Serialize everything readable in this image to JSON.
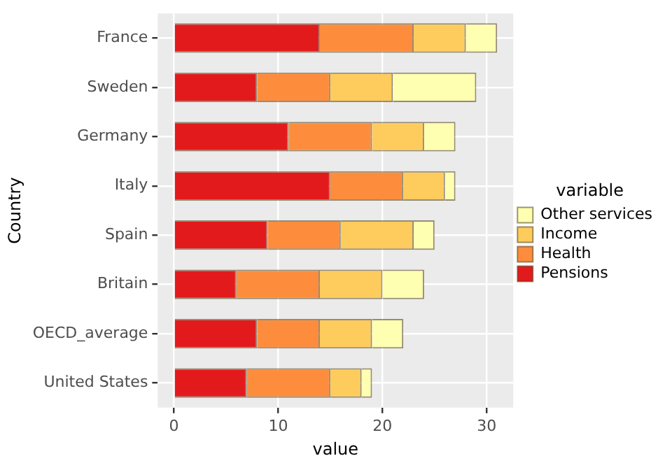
{
  "chart_data": {
    "type": "bar",
    "orientation": "horizontal",
    "stacked": true,
    "xlabel": "value",
    "ylabel": "Country",
    "legend_title": "variable",
    "legend": "right",
    "grid": true,
    "categories": [
      "France",
      "Sweden",
      "Germany",
      "Italy",
      "Spain",
      "Britain",
      "OECD_average",
      "United States"
    ],
    "xlim": [
      -1.55,
      32.55
    ],
    "xticks": [
      0,
      10,
      20,
      30
    ],
    "series": [
      {
        "name": "Pensions",
        "color": "#e31a1c",
        "values": [
          14,
          8,
          11,
          15,
          9,
          6,
          8,
          7
        ]
      },
      {
        "name": "Health",
        "color": "#fd8d3c",
        "values": [
          9,
          7,
          8,
          7,
          7,
          8,
          6,
          8
        ]
      },
      {
        "name": "Income",
        "color": "#fecc5c",
        "values": [
          5,
          6,
          5,
          4,
          7,
          6,
          5,
          3
        ]
      },
      {
        "name": "Other services",
        "color": "#ffffb2",
        "values": [
          3,
          8,
          3,
          1,
          2,
          4,
          3,
          1
        ]
      }
    ]
  }
}
